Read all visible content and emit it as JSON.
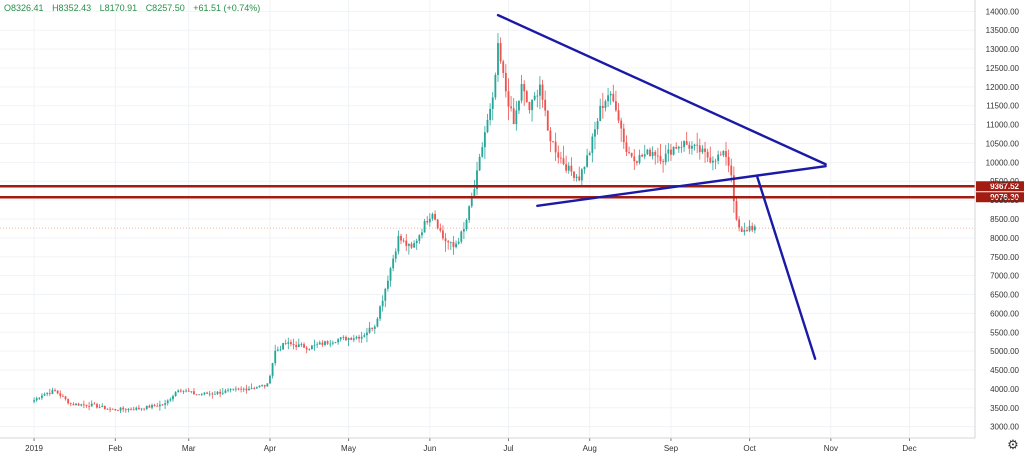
{
  "header": {
    "open": "O8326.41",
    "high": "H8352.43",
    "low": "L8170.91",
    "close": "C8257.50",
    "change": "+61.51 (+0.74%)",
    "color": "#2a8f4a"
  },
  "settings_icon": "gear-icon",
  "colors": {
    "up": "#26a69a",
    "down": "#ef5350",
    "trendline": "#1a1aa6",
    "level": "#a31c12",
    "grid": "#f0f3f6"
  },
  "chart_data": {
    "type": "candlestick",
    "y_ticks": [
      "14000.00",
      "13500.00",
      "13000.00",
      "12500.00",
      "12000.00",
      "11500.00",
      "11000.00",
      "10500.00",
      "10000.00",
      "9500.00",
      "9000.00",
      "8500.00",
      "8000.00",
      "7500.00",
      "7000.00",
      "6500.00",
      "6000.00",
      "5500.00",
      "5000.00",
      "4500.00",
      "4000.00",
      "3500.00",
      "3000.00"
    ],
    "y_tick_values": [
      14000,
      13500,
      13000,
      12500,
      12000,
      11500,
      11000,
      10500,
      10000,
      9500,
      9000,
      8500,
      8000,
      7500,
      7000,
      6500,
      6000,
      5500,
      5000,
      4500,
      4000,
      3500,
      3000
    ],
    "x_ticks": [
      "2019",
      "Feb",
      "Mar",
      "Apr",
      "May",
      "Jun",
      "Jul",
      "Aug",
      "Sep",
      "Oct",
      "Nov",
      "Dec"
    ],
    "x_tick_days": [
      0,
      31,
      59,
      90,
      120,
      151,
      181,
      212,
      243,
      273,
      304,
      334
    ],
    "ylim": [
      2700,
      14300
    ],
    "xlim": [
      -13,
      359
    ],
    "price_levels": [
      {
        "label": "9367.52",
        "value": 9367.52
      },
      {
        "label": "9076.30",
        "value": 9076.3
      }
    ],
    "last_price": 8257.5,
    "trendlines": [
      {
        "name": "descending-resistance",
        "from": {
          "day": 177,
          "price": 13900
        },
        "to": {
          "day": 302,
          "price": 9950
        }
      },
      {
        "name": "ascending-support",
        "from": {
          "day": 192,
          "price": 8850
        },
        "to": {
          "day": 302,
          "price": 9900
        }
      },
      {
        "name": "breakdown-projection",
        "from": {
          "day": 276,
          "price": 9600
        },
        "to": {
          "day": 298,
          "price": 4800
        }
      }
    ],
    "anchors": [
      {
        "day": 0,
        "price": 3700
      },
      {
        "day": 3,
        "price": 3850
      },
      {
        "day": 8,
        "price": 3950
      },
      {
        "day": 14,
        "price": 3600
      },
      {
        "day": 22,
        "price": 3570
      },
      {
        "day": 30,
        "price": 3450
      },
      {
        "day": 40,
        "price": 3480
      },
      {
        "day": 50,
        "price": 3600
      },
      {
        "day": 55,
        "price": 4000
      },
      {
        "day": 62,
        "price": 3850
      },
      {
        "day": 70,
        "price": 3900
      },
      {
        "day": 80,
        "price": 4000
      },
      {
        "day": 89,
        "price": 4100
      },
      {
        "day": 92,
        "price": 5000
      },
      {
        "day": 96,
        "price": 5200
      },
      {
        "day": 105,
        "price": 5100
      },
      {
        "day": 115,
        "price": 5300
      },
      {
        "day": 125,
        "price": 5400
      },
      {
        "day": 130,
        "price": 5700
      },
      {
        "day": 133,
        "price": 6400
      },
      {
        "day": 136,
        "price": 7200
      },
      {
        "day": 139,
        "price": 8000
      },
      {
        "day": 144,
        "price": 7700
      },
      {
        "day": 150,
        "price": 8500
      },
      {
        "day": 152,
        "price": 8700
      },
      {
        "day": 156,
        "price": 8000
      },
      {
        "day": 160,
        "price": 7750
      },
      {
        "day": 164,
        "price": 8200
      },
      {
        "day": 168,
        "price": 9300
      },
      {
        "day": 172,
        "price": 10800
      },
      {
        "day": 175,
        "price": 11600
      },
      {
        "day": 177,
        "price": 13000
      },
      {
        "day": 180,
        "price": 11900
      },
      {
        "day": 183,
        "price": 11000
      },
      {
        "day": 186,
        "price": 12000
      },
      {
        "day": 189,
        "price": 11400
      },
      {
        "day": 191,
        "price": 11700
      },
      {
        "day": 193,
        "price": 12100
      },
      {
        "day": 196,
        "price": 10800
      },
      {
        "day": 200,
        "price": 10200
      },
      {
        "day": 204,
        "price": 9800
      },
      {
        "day": 208,
        "price": 9600
      },
      {
        "day": 212,
        "price": 10300
      },
      {
        "day": 216,
        "price": 11400
      },
      {
        "day": 219,
        "price": 11800
      },
      {
        "day": 222,
        "price": 11500
      },
      {
        "day": 226,
        "price": 10300
      },
      {
        "day": 230,
        "price": 10100
      },
      {
        "day": 236,
        "price": 10300
      },
      {
        "day": 240,
        "price": 10100
      },
      {
        "day": 244,
        "price": 10400
      },
      {
        "day": 248,
        "price": 10500
      },
      {
        "day": 254,
        "price": 10300
      },
      {
        "day": 258,
        "price": 10100
      },
      {
        "day": 264,
        "price": 10200
      },
      {
        "day": 266,
        "price": 9700
      },
      {
        "day": 268,
        "price": 8400
      },
      {
        "day": 270,
        "price": 8100
      },
      {
        "day": 273,
        "price": 8300
      },
      {
        "day": 275,
        "price": 8257
      }
    ]
  }
}
